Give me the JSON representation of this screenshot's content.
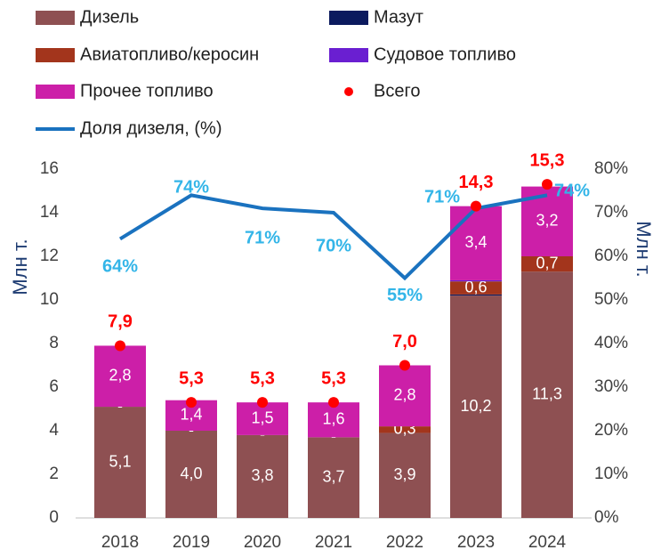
{
  "chart_data": {
    "type": "bar",
    "stacked": true,
    "categories": [
      "2018",
      "2019",
      "2020",
      "2021",
      "2022",
      "2023",
      "2024"
    ],
    "series": [
      {
        "name": "Дизель",
        "type": "bar",
        "color": "#8e5052",
        "values": [
          5.1,
          4.0,
          3.8,
          3.7,
          3.9,
          10.2,
          11.3
        ],
        "value_labels": [
          "5,1",
          "4,0",
          "3,8",
          "3,7",
          "3,9",
          "10,2",
          "11,3"
        ]
      },
      {
        "name": "Мазут",
        "type": "bar",
        "color": "#0b1a5e",
        "values": [
          0,
          0,
          0,
          0,
          0,
          0.05,
          0
        ]
      },
      {
        "name": "Авиатопливо/керосин",
        "type": "bar",
        "color": "#a3351c",
        "values": [
          0,
          0,
          0,
          0,
          0.3,
          0.6,
          0.7
        ],
        "value_labels": [
          "-",
          "-",
          "-",
          "-",
          "0,3",
          "0,6",
          "0,7"
        ]
      },
      {
        "name": "Судовое топливо",
        "type": "bar",
        "color": "#6a1fd1",
        "values": [
          0,
          0,
          0,
          0,
          0,
          0.05,
          0
        ]
      },
      {
        "name": "Прочее топливо",
        "type": "bar",
        "color": "#cc1fa8",
        "values": [
          2.8,
          1.4,
          1.5,
          1.6,
          2.8,
          3.4,
          3.2
        ],
        "value_labels": [
          "2,8",
          "1,4",
          "1,5",
          "1,6",
          "2,8",
          "3,4",
          "3,2"
        ]
      },
      {
        "name": "Всего",
        "type": "scatter",
        "color": "#ff0000",
        "values": [
          7.9,
          5.3,
          5.3,
          5.3,
          7.0,
          14.3,
          15.3
        ],
        "value_labels": [
          "7,9",
          "5,3",
          "5,3",
          "5,3",
          "7,0",
          "14,3",
          "15,3"
        ]
      },
      {
        "name": "Доля дизеля, (%)",
        "type": "line",
        "axis": "y2",
        "color": "#1a72bf",
        "values": [
          64,
          74,
          71,
          70,
          55,
          71,
          74
        ],
        "value_labels": [
          "64%",
          "74%",
          "71%",
          "70%",
          "55%",
          "71%",
          "74%"
        ]
      }
    ],
    "ylabel": "Млн т.",
    "y2label": "Млн т.",
    "ylim": [
      0,
      16
    ],
    "yticks": [
      0,
      2,
      4,
      6,
      8,
      10,
      12,
      14,
      16
    ],
    "y2lim": [
      0,
      80
    ],
    "y2ticks": [
      {
        "value": 0,
        "label": "0%"
      },
      {
        "value": 10,
        "label": "10%"
      },
      {
        "value": 20,
        "label": "20%"
      },
      {
        "value": 30,
        "label": "30%"
      },
      {
        "value": 40,
        "label": "40%"
      },
      {
        "value": 50,
        "label": "50%"
      },
      {
        "value": 60,
        "label": "60%"
      },
      {
        "value": 70,
        "label": "70%"
      },
      {
        "value": 80,
        "label": "80%"
      }
    ],
    "grid": false
  }
}
